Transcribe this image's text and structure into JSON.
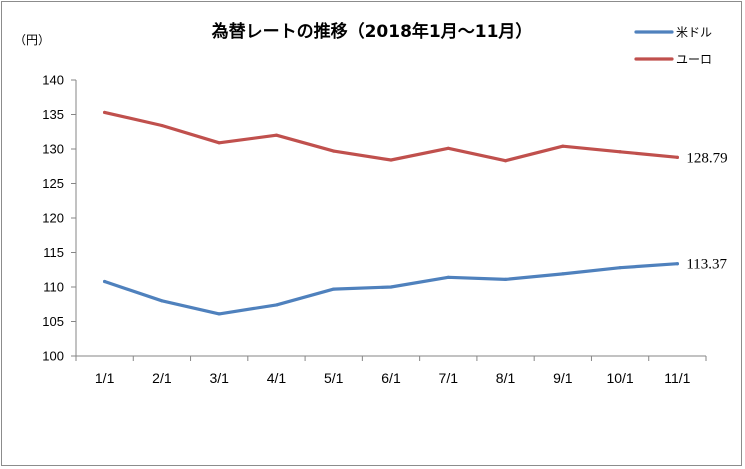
{
  "chart_data": {
    "type": "line",
    "title": "為替レートの推移（2018年1月～11月）",
    "ylabel": "（円）",
    "xlabel": "",
    "categories": [
      "1/1",
      "2/1",
      "3/1",
      "4/1",
      "5/1",
      "6/1",
      "7/1",
      "8/1",
      "9/1",
      "10/1",
      "11/1"
    ],
    "ylim": [
      100,
      140
    ],
    "yticks": [
      "100",
      "105",
      "110",
      "115",
      "120",
      "125",
      "130",
      "135",
      "140"
    ],
    "grid": false,
    "legend_position": "top-right",
    "series": [
      {
        "name": "米ドル",
        "color": "#4F81BD",
        "values": [
          110.8,
          108.0,
          106.1,
          107.4,
          109.7,
          110.0,
          111.4,
          111.1,
          111.9,
          112.8,
          113.37
        ],
        "end_label": "113.37"
      },
      {
        "name": "ユーロ",
        "color": "#C0504D",
        "values": [
          135.3,
          133.4,
          130.9,
          132.0,
          129.7,
          128.4,
          130.1,
          128.3,
          130.4,
          129.6,
          128.79
        ],
        "end_label": "128.79"
      }
    ]
  }
}
